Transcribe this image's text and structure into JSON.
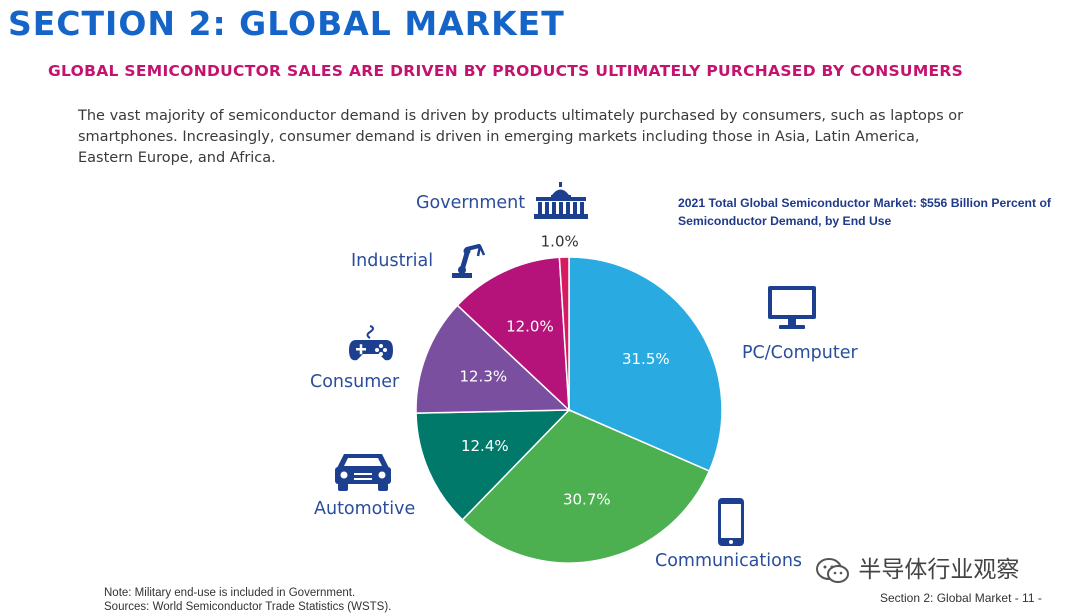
{
  "page": {
    "title": "SECTION 2: GLOBAL MARKET",
    "subtitle": "GLOBAL SEMICONDUCTOR SALES ARE DRIVEN BY PRODUCTS ULTIMATELY PURCHASED BY CONSUMERS",
    "intro": "The vast majority of semiconductor demand is driven by products ultimately purchased by consumers, such as laptops or smartphones. Increasingly, consumer demand is driven in emerging markets including those in Asia, Latin America, Eastern Europe, and Africa.",
    "note": "Note: Military end-use is included in Government.",
    "sources": "Sources: World Semiconductor Trade Statistics (WSTS).",
    "footer": "Section 2: Global Market - 11 -",
    "watermark": "半导体行业观察"
  },
  "chart_data": {
    "type": "pie",
    "title": "2021 Total Global Semiconductor Market: $556 Billion Percent of Semiconductor Demand, by End Use",
    "slices": [
      {
        "label": "PC/Computer",
        "value": 31.5,
        "value_label": "31.5%",
        "color": "#29abe2",
        "icon": "monitor-icon"
      },
      {
        "label": "Communications",
        "value": 30.7,
        "value_label": "30.7%",
        "color": "#4caf50",
        "icon": "smartphone-icon"
      },
      {
        "label": "Automotive",
        "value": 12.4,
        "value_label": "12.4%",
        "color": "#00796b",
        "icon": "car-icon"
      },
      {
        "label": "Consumer",
        "value": 12.3,
        "value_label": "12.3%",
        "color": "#7b4fa0",
        "icon": "gamepad-icon"
      },
      {
        "label": "Industrial",
        "value": 12.0,
        "value_label": "12.0%",
        "color": "#b5127a",
        "icon": "robot-arm-icon"
      },
      {
        "label": "Government",
        "value": 1.0,
        "value_label": "1.0%",
        "color": "#d81b60",
        "icon": "capitol-icon"
      }
    ]
  },
  "colors": {
    "title": "#1565c8",
    "subtitle": "#c4126f",
    "label": "#2a4d9c",
    "icon": "#1d3f8f"
  }
}
